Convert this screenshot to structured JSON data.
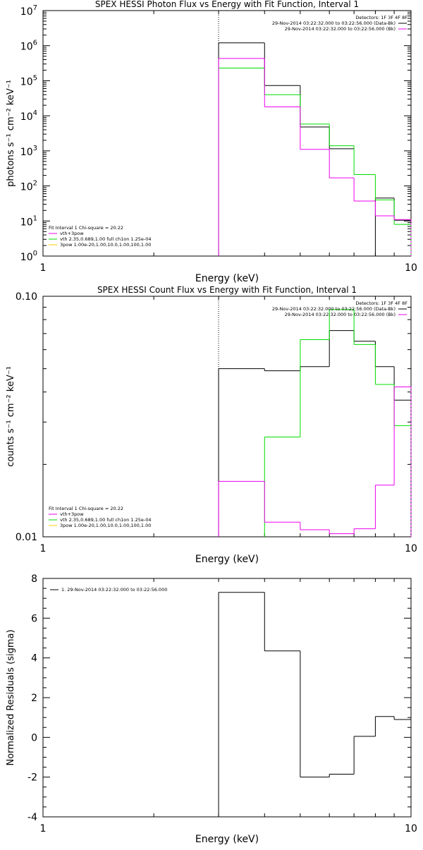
{
  "chart_data": [
    {
      "type": "line",
      "step": "histogram",
      "scale": {
        "x": "log",
        "y": "log"
      },
      "title": "SPEX HESSI Photon Flux vs Energy with Fit Function, Interval 1",
      "xlabel": "Energy (keV)",
      "ylabel": "photons s⁻¹ cm⁻² keV⁻¹",
      "xlim": [
        1,
        10
      ],
      "ylim": [
        1,
        10000000
      ],
      "x_ticks": [
        {
          "v": 1,
          "label": "1"
        },
        {
          "v": 10,
          "label": "10"
        }
      ],
      "y_ticks": [
        {
          "v": 1,
          "base": "10",
          "exp": "0"
        },
        {
          "v": 10,
          "base": "10",
          "exp": "1"
        },
        {
          "v": 100,
          "base": "10",
          "exp": "2"
        },
        {
          "v": 1000,
          "base": "10",
          "exp": "3"
        },
        {
          "v": 10000,
          "base": "10",
          "exp": "4"
        },
        {
          "v": 100000,
          "base": "10",
          "exp": "5"
        },
        {
          "v": 1000000,
          "base": "10",
          "exp": "6"
        },
        {
          "v": 10000000,
          "base": "10",
          "exp": "7"
        }
      ],
      "vline_x": 3,
      "bin_edges": [
        3,
        4,
        5,
        6,
        7,
        8,
        9,
        10
      ],
      "series": [
        {
          "color": "#000000",
          "values": [
            1200000,
            73000,
            4800,
            1150,
            null,
            45,
            10.5
          ]
        },
        {
          "color": "#00dd00",
          "values": [
            230000,
            40000,
            5800,
            1400,
            210,
            40,
            8
          ]
        },
        {
          "color": "#ee00ee",
          "values": [
            430000,
            18000,
            1100,
            170,
            37,
            14,
            11
          ]
        }
      ],
      "legend_topright": {
        "header": "Detectors: 1F 3F 4F 8F",
        "entries": [
          {
            "text": "29-Nov-2014 03:22:32.000 to 03:22:56.000 (Data-Bk)",
            "color": "#000000"
          },
          {
            "text": "29-Nov-2014 03:22:32.000 to 03:22:56.000 (Bk)",
            "color": "#ee00ee"
          }
        ]
      },
      "legend_bottomleft": {
        "header": "Fit Interval 1    Chi-square = 20.22",
        "entries": [
          {
            "text": "vth+3pow",
            "color": "#ee00ee"
          },
          {
            "text": "vth 2.35,0.689,1.00  full ch1on 1.25e-04",
            "color": "#00dd00"
          },
          {
            "text": "3pow 1.00e-20,1.00,10.0,1.00,100,1.00",
            "color": "#ffcc00"
          }
        ]
      }
    },
    {
      "type": "line",
      "step": "histogram",
      "scale": {
        "x": "log",
        "y": "log"
      },
      "title": "SPEX HESSI Count Flux vs Energy with Fit Function, Interval 1",
      "xlabel": "Energy (keV)",
      "ylabel": "counts s⁻¹ cm⁻² keV⁻¹",
      "xlim": [
        1,
        10
      ],
      "ylim": [
        0.01,
        0.1
      ],
      "x_ticks": [
        {
          "v": 1,
          "label": "1"
        },
        {
          "v": 10,
          "label": "10"
        }
      ],
      "y_ticks": [
        {
          "v": 0.01,
          "label": "0.01"
        },
        {
          "v": 0.1,
          "label": "0.10"
        }
      ],
      "vline_x": 3,
      "bin_edges": [
        3,
        4,
        5,
        6,
        7,
        8,
        9,
        10
      ],
      "series": [
        {
          "color": "#000000",
          "values": [
            0.05,
            0.049,
            0.051,
            0.072,
            0.065,
            0.051,
            0.037
          ]
        },
        {
          "color": "#00dd00",
          "values": [
            null,
            0.026,
            0.066,
            0.088,
            0.063,
            0.043,
            0.029
          ]
        },
        {
          "color": "#ee00ee",
          "values": [
            0.017,
            0.0115,
            0.0107,
            0.0103,
            0.0108,
            0.0164,
            0.042
          ]
        }
      ],
      "legend_topright": {
        "header": "Detectors: 1F 3F 4F 8F",
        "entries": [
          {
            "text": "29-Nov-2014 03:22:32.000 to 03:22:56.000 (Data-Bk)",
            "color": "#000000"
          },
          {
            "text": "29-Nov-2014 03:22:32.000 to 03:22:56.000 (Bk)",
            "color": "#ee00ee"
          }
        ]
      },
      "legend_bottomleft": {
        "header": "Fit Interval 1    Chi-square = 20.22",
        "entries": [
          {
            "text": "vth+3pow",
            "color": "#ee00ee"
          },
          {
            "text": "vth 2.35,0.689,1.00  full ch1on 1.25e-04",
            "color": "#00dd00"
          },
          {
            "text": "3pow 1.00e-20,1.00,10.0,1.00,100,1.00",
            "color": "#ffcc00"
          }
        ]
      }
    },
    {
      "type": "line",
      "step": "histogram",
      "scale": {
        "x": "log",
        "y": "linear"
      },
      "title": "",
      "xlabel": "Energy (keV)",
      "ylabel": "Normalized Residuals (sigma)",
      "xlim": [
        1,
        10
      ],
      "ylim": [
        -4,
        8
      ],
      "x_ticks": [
        {
          "v": 1,
          "label": "1"
        },
        {
          "v": 10,
          "label": "10"
        }
      ],
      "y_ticks": [
        {
          "v": -4,
          "label": "-4"
        },
        {
          "v": -2,
          "label": "-2"
        },
        {
          "v": 0,
          "label": "0"
        },
        {
          "v": 2,
          "label": "2"
        },
        {
          "v": 4,
          "label": "4"
        },
        {
          "v": 6,
          "label": "6"
        },
        {
          "v": 8,
          "label": "8"
        }
      ],
      "bin_edges": [
        3,
        4,
        5,
        6,
        7,
        8,
        9,
        10
      ],
      "series": [
        {
          "color": "#000000",
          "values": [
            7.3,
            4.35,
            -2.0,
            -1.85,
            0.05,
            1.05,
            0.9
          ]
        }
      ],
      "legend_topleft": {
        "entries": [
          {
            "text": "1. 29-Nov-2014 03:22:32.000 to 03:22:56.000",
            "color": "#000000"
          }
        ]
      }
    }
  ]
}
